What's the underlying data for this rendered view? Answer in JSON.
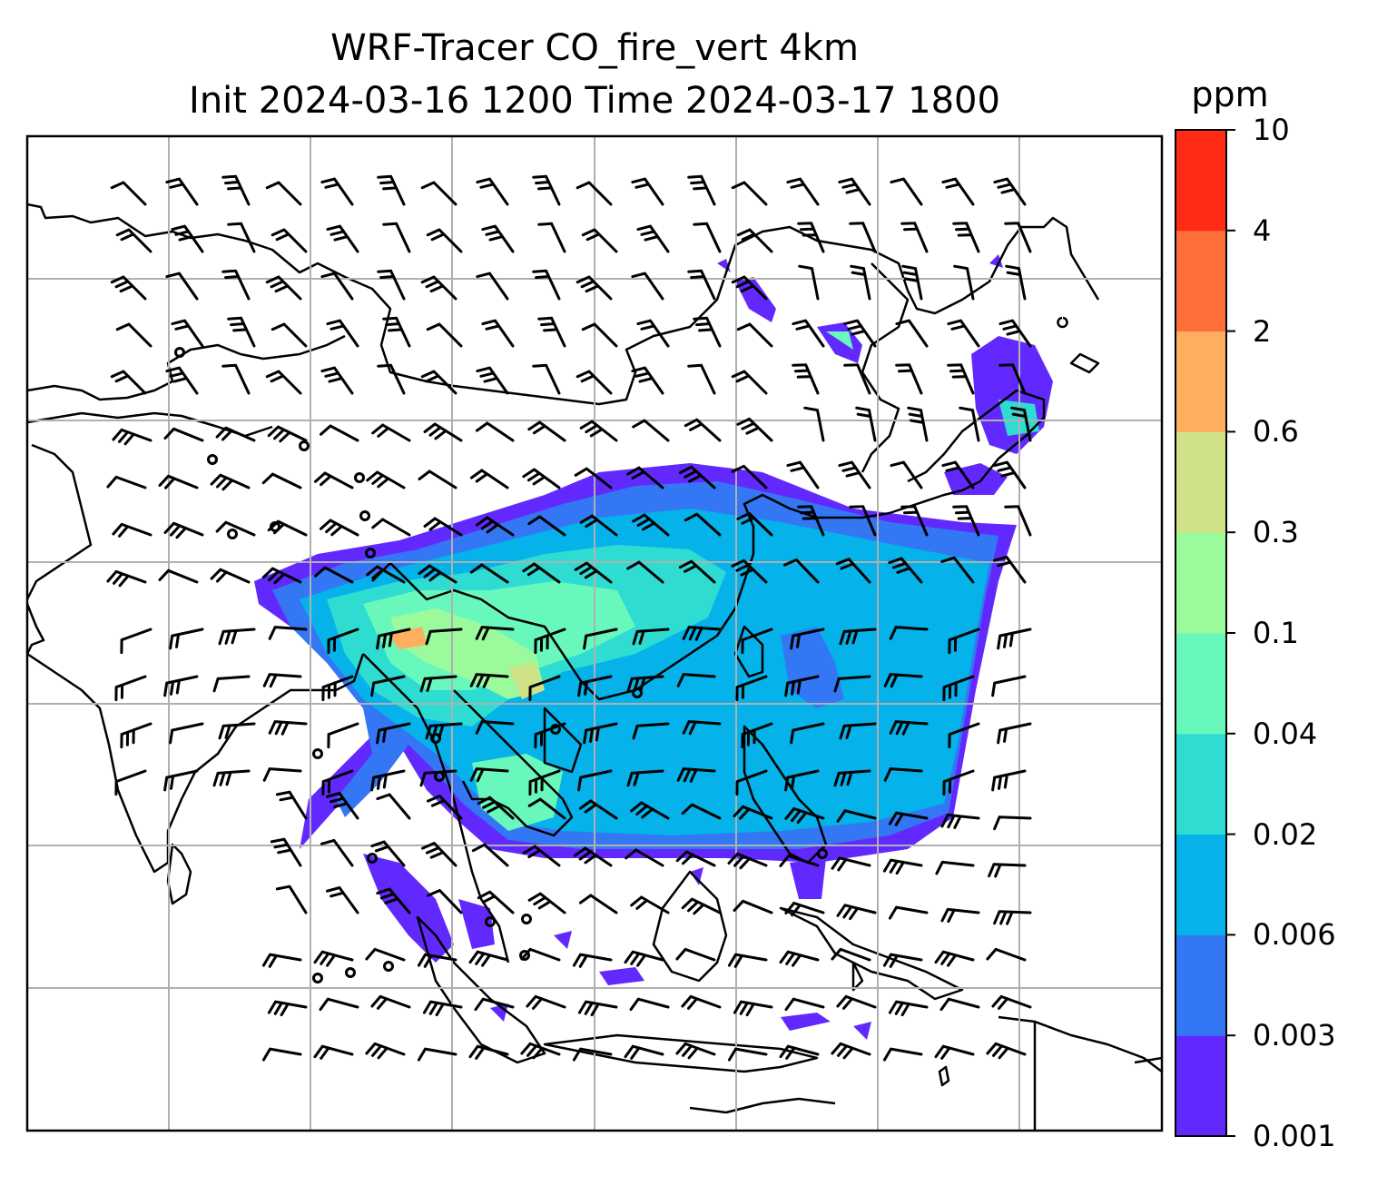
{
  "title": {
    "line1": "WRF-Tracer CO_fire_vert 4km",
    "line2": "Init 2024-03-16 1200 Time 2024-03-17 1800"
  },
  "colorbar": {
    "unit": "ppm",
    "levels": [
      "0.001",
      "0.003",
      "0.006",
      "0.02",
      "0.04",
      "0.1",
      "0.3",
      "0.6",
      "2",
      "4",
      "10"
    ],
    "colors": [
      "#6229ff",
      "#3377f5",
      "#05b2ea",
      "#2edcd2",
      "#68f8bc",
      "#9bfb9c",
      "#cfe287",
      "#ffae60",
      "#ff6f3a",
      "#ff2b17"
    ]
  },
  "map": {
    "gridlines": true,
    "gridline_color": "#b0b0b0",
    "coastline_color": "#000000"
  }
}
